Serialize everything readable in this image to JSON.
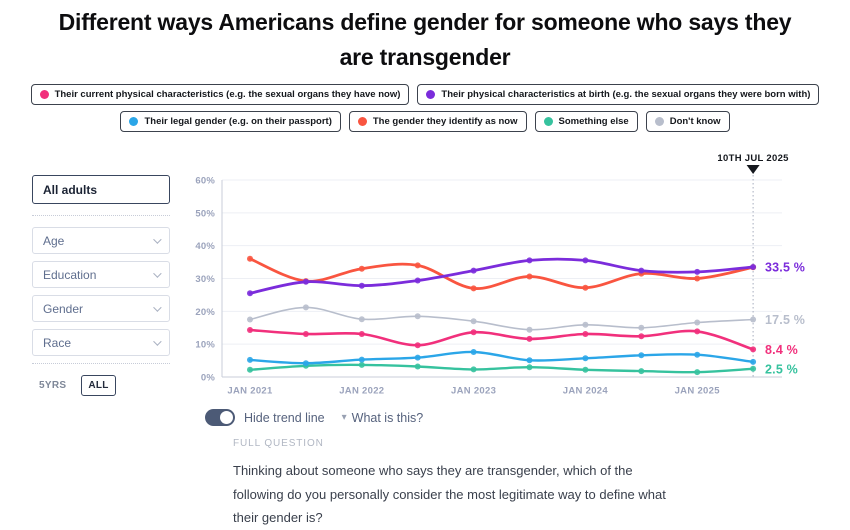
{
  "page": {
    "title": "Different ways Americans define gender for someone who says they are transgender"
  },
  "legend": {
    "row1": [
      {
        "label": "Their current physical characteristics (e.g. the sexual organs they have now)",
        "color": "#F1307C"
      },
      {
        "label": "Their physical characteristics at birth (e.g. the sexual organs they were born with)",
        "color": "#7B2CDB"
      }
    ],
    "row2": [
      {
        "label": "Their legal gender (e.g. on their passport)",
        "color": "#2BA6E8"
      },
      {
        "label": "The gender they identify as now",
        "color": "#F95540"
      },
      {
        "label": "Something else",
        "color": "#36C29E"
      },
      {
        "label": "Don't know",
        "color": "#B8BECC"
      }
    ]
  },
  "sidebar": {
    "selected_group": "All adults",
    "filters": [
      {
        "label": "Age"
      },
      {
        "label": "Education"
      },
      {
        "label": "Gender"
      },
      {
        "label": "Race"
      }
    ],
    "range_buttons": [
      {
        "label": "5YRS",
        "active": false
      },
      {
        "label": "ALL",
        "active": true
      }
    ]
  },
  "chart_data": {
    "type": "line",
    "x": [
      "Jan 2021",
      "Jul 2021",
      "Jan 2022",
      "Jul 2022",
      "Jan 2023",
      "Jul 2023",
      "Jan 2024",
      "Jul 2024",
      "Jan 2025",
      "Jul 2025"
    ],
    "x_axis_ticks": [
      "JAN 2021",
      "JAN 2022",
      "JAN 2023",
      "JAN 2024",
      "JAN 2025"
    ],
    "y_ticks": [
      "60%",
      "50%",
      "40%",
      "30%",
      "20%",
      "10%",
      "0%"
    ],
    "ylim": [
      0,
      60
    ],
    "grid": true,
    "legend_position": "top",
    "cursor_label": "10TH JUL 2025",
    "series": [
      {
        "name": "Don't know",
        "color": "#B8BECC",
        "width": 1.6,
        "end_label": "17.5 %",
        "values": [
          17.5,
          21.2,
          17.6,
          18.5,
          17,
          14.4,
          15.9,
          15,
          16.6,
          17.5
        ]
      },
      {
        "name": "Something else",
        "color": "#36C29E",
        "width": 2.4,
        "end_label": "2.5 %",
        "values": [
          2.2,
          3.4,
          3.7,
          3.2,
          2.3,
          3,
          2.2,
          1.8,
          1.5,
          2.5
        ]
      },
      {
        "name": "Their legal gender (e.g. on their passport)",
        "color": "#2BA6E8",
        "width": 2.4,
        "end_label": "",
        "values": [
          5.2,
          4.2,
          5.3,
          5.9,
          7.6,
          5.1,
          5.7,
          6.6,
          6.8,
          4.6
        ]
      },
      {
        "name": "Their current physical characteristics (e.g. the sexual organs they have now)",
        "color": "#F1307C",
        "width": 2.6,
        "end_label": "8.4 %",
        "values": [
          14.3,
          13.1,
          13.1,
          9.7,
          13.6,
          11.6,
          13.1,
          12.4,
          13.9,
          8.4
        ]
      },
      {
        "name": "The gender they identify as now",
        "color": "#F95540",
        "width": 2.8,
        "end_label": "",
        "values": [
          36,
          29.2,
          33,
          34,
          27,
          30.6,
          27.2,
          31.5,
          30,
          33.4
        ]
      },
      {
        "name": "Their physical characteristics at birth (e.g. the sexual organs they were born with)",
        "color": "#7B2CDB",
        "width": 2.8,
        "end_label": "33.5 %",
        "values": [
          25.5,
          29,
          27.8,
          29.4,
          32.4,
          35.5,
          35.5,
          32.4,
          32,
          33.5
        ]
      }
    ]
  },
  "controls": {
    "toggle_label": "Hide trend line",
    "toggle_on": true,
    "what_is_this": "What is this?"
  },
  "question": {
    "heading": "FULL QUESTION",
    "text": "Thinking about someone who says they are transgender, which of the following do you personally consider the most legitimate way to define what their gender is?"
  }
}
